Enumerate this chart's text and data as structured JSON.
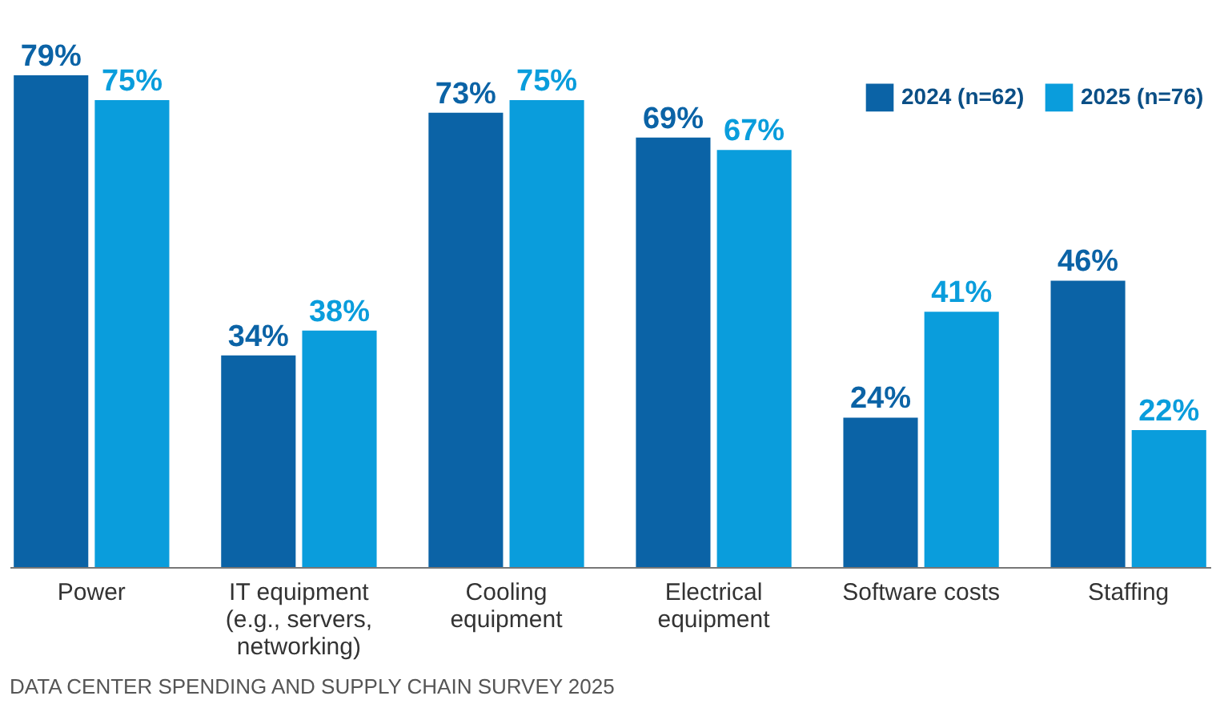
{
  "chart_data": {
    "type": "bar",
    "categories": [
      "Power",
      "IT equipment (e.g., servers, networking)",
      "Cooling equipment",
      "Electrical equipment",
      "Software costs",
      "Staffing"
    ],
    "series": [
      {
        "name": "2024 (n=62)",
        "color": "#0b63a6",
        "values": [
          79,
          34,
          73,
          69,
          24,
          46
        ],
        "value_labels": [
          "79%",
          "34%",
          "73%",
          "69%",
          "24%",
          "46%"
        ]
      },
      {
        "name": "2025 (n=76)",
        "color": "#0a9ddc",
        "values": [
          75,
          38,
          75,
          67,
          41,
          22
        ],
        "value_labels": [
          "75%",
          "38%",
          "75%",
          "67%",
          "41%",
          "22%"
        ]
      }
    ],
    "legend": "top right",
    "annotations": [
      "DATA CENTER SPENDING AND SUPPLY CHAIN SURVEY 2025"
    ]
  }
}
